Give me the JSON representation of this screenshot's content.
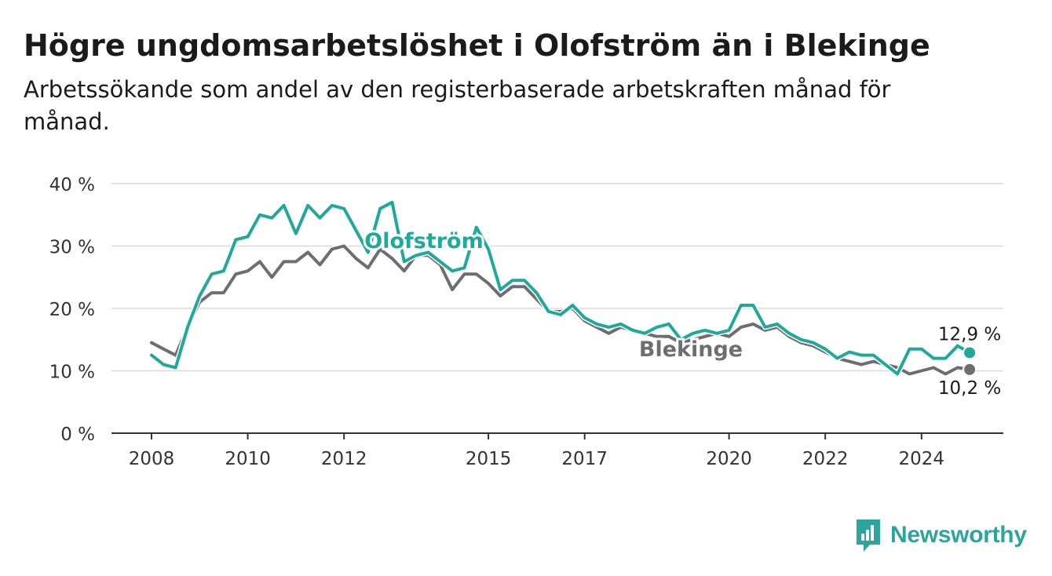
{
  "header": {
    "title": "Högre ungdomsarbetslöshet i Olofström än i Blekinge",
    "subtitle": "Arbetssökande som andel av den registerbaserade arbetskraften månad för månad."
  },
  "brand": {
    "name": "Newsworthy",
    "icon": "newsworthy-logo-icon",
    "color": "#2aa69c"
  },
  "chart_data": {
    "type": "line",
    "title": "Högre ungdomsarbetslöshet i Olofström än i Blekinge",
    "subtitle": "Arbetssökande som andel av den registerbaserade arbetskraften månad för månad.",
    "xlabel": "",
    "ylabel": "",
    "xlim": [
      2008,
      2025.25
    ],
    "ylim": [
      0,
      40
    ],
    "yticks": [
      0,
      10,
      20,
      30,
      40
    ],
    "ytick_labels": [
      "0 %",
      "10 %",
      "20 %",
      "30 %",
      "40 %"
    ],
    "xticks": [
      2008,
      2010,
      2012,
      2015,
      2017,
      2020,
      2022,
      2024
    ],
    "xtick_labels": [
      "2008",
      "2010",
      "2012",
      "2015",
      "2017",
      "2020",
      "2022",
      "2024"
    ],
    "grid": "horizontal",
    "series": [
      {
        "name": "Blekinge",
        "color": "#6e6d72",
        "last_label": "10,2 %",
        "x": [
          2008.0,
          2008.25,
          2008.5,
          2008.75,
          2009.0,
          2009.25,
          2009.5,
          2009.75,
          2010.0,
          2010.25,
          2010.5,
          2010.75,
          2011.0,
          2011.25,
          2011.5,
          2011.75,
          2012.0,
          2012.25,
          2012.5,
          2012.75,
          2013.0,
          2013.25,
          2013.5,
          2013.75,
          2014.0,
          2014.25,
          2014.5,
          2014.75,
          2015.0,
          2015.25,
          2015.5,
          2015.75,
          2016.0,
          2016.25,
          2016.5,
          2016.75,
          2017.0,
          2017.25,
          2017.5,
          2017.75,
          2018.0,
          2018.25,
          2018.5,
          2018.75,
          2019.0,
          2019.25,
          2019.5,
          2019.75,
          2020.0,
          2020.25,
          2020.5,
          2020.75,
          2021.0,
          2021.25,
          2021.5,
          2021.75,
          2022.0,
          2022.25,
          2022.5,
          2022.75,
          2023.0,
          2023.25,
          2023.5,
          2023.75,
          2024.0,
          2024.25,
          2024.5,
          2024.75,
          2025.0
        ],
        "y": [
          14.5,
          13.5,
          12.5,
          17.0,
          21.0,
          22.5,
          22.5,
          25.5,
          26.0,
          27.5,
          25.0,
          27.5,
          27.5,
          29.0,
          27.0,
          29.5,
          30.0,
          28.0,
          26.5,
          29.5,
          28.0,
          26.0,
          28.5,
          28.5,
          27.0,
          23.0,
          25.5,
          25.5,
          24.0,
          22.0,
          23.5,
          23.5,
          21.5,
          19.5,
          19.5,
          20.0,
          18.0,
          17.0,
          16.0,
          17.0,
          16.5,
          16.0,
          15.5,
          15.5,
          14.5,
          15.0,
          15.5,
          16.0,
          15.5,
          17.0,
          17.5,
          16.5,
          17.0,
          15.5,
          14.5,
          14.0,
          13.0,
          12.0,
          11.5,
          11.0,
          11.5,
          11.0,
          10.5,
          9.5,
          10.0,
          10.5,
          9.5,
          10.5,
          10.2
        ]
      },
      {
        "name": "Olofström",
        "color": "#1fa99a",
        "last_label": "12,9 %",
        "x": [
          2008.0,
          2008.25,
          2008.5,
          2008.75,
          2009.0,
          2009.25,
          2009.5,
          2009.75,
          2010.0,
          2010.25,
          2010.5,
          2010.75,
          2011.0,
          2011.25,
          2011.5,
          2011.75,
          2012.0,
          2012.25,
          2012.5,
          2012.75,
          2013.0,
          2013.25,
          2013.5,
          2013.75,
          2014.0,
          2014.25,
          2014.5,
          2014.75,
          2015.0,
          2015.25,
          2015.5,
          2015.75,
          2016.0,
          2016.25,
          2016.5,
          2016.75,
          2017.0,
          2017.25,
          2017.5,
          2017.75,
          2018.0,
          2018.25,
          2018.5,
          2018.75,
          2019.0,
          2019.25,
          2019.5,
          2019.75,
          2020.0,
          2020.25,
          2020.5,
          2020.75,
          2021.0,
          2021.25,
          2021.5,
          2021.75,
          2022.0,
          2022.25,
          2022.5,
          2022.75,
          2023.0,
          2023.25,
          2023.5,
          2023.75,
          2024.0,
          2024.25,
          2024.5,
          2024.75,
          2025.0
        ],
        "y": [
          12.5,
          11.0,
          10.5,
          17.0,
          22.0,
          25.5,
          26.0,
          31.0,
          31.5,
          35.0,
          34.5,
          36.5,
          32.0,
          36.5,
          34.5,
          36.5,
          36.0,
          32.5,
          29.0,
          36.0,
          37.0,
          27.5,
          28.5,
          29.0,
          27.5,
          26.0,
          26.5,
          33.0,
          29.5,
          23.0,
          24.5,
          24.5,
          22.5,
          19.5,
          19.0,
          20.5,
          18.5,
          17.5,
          17.0,
          17.5,
          16.5,
          16.0,
          17.0,
          17.5,
          15.0,
          16.0,
          16.5,
          16.0,
          16.5,
          20.5,
          20.5,
          17.0,
          17.5,
          16.0,
          15.0,
          14.5,
          13.5,
          12.0,
          13.0,
          12.5,
          12.5,
          11.0,
          9.5,
          13.5,
          13.5,
          12.0,
          12.0,
          14.0,
          12.9
        ]
      }
    ]
  }
}
